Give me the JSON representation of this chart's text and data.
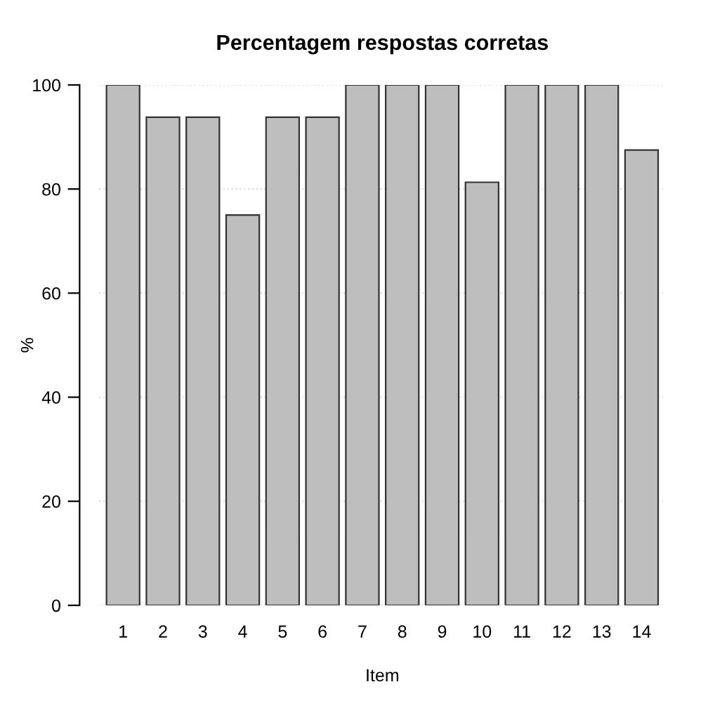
{
  "chart_data": {
    "type": "bar",
    "title": "Percentagem respostas corretas",
    "xlabel": "Item",
    "ylabel": "%",
    "categories": [
      "1",
      "2",
      "3",
      "4",
      "5",
      "6",
      "7",
      "8",
      "9",
      "10",
      "11",
      "12",
      "13",
      "14"
    ],
    "values": [
      100,
      93.8,
      93.8,
      75,
      93.8,
      93.8,
      100,
      100,
      100,
      81.3,
      100,
      100,
      100,
      87.5
    ],
    "color": "#bebebe",
    "ylim": [
      0,
      100
    ],
    "yticks": [
      0,
      20,
      40,
      60,
      80,
      100
    ],
    "grid": "y"
  }
}
